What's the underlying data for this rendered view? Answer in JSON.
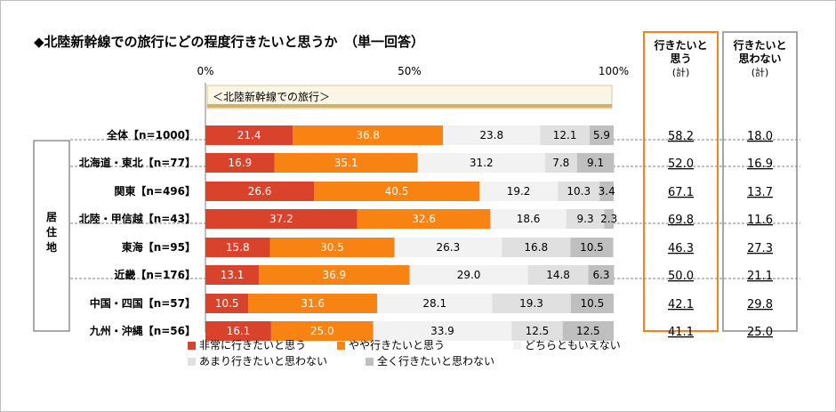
{
  "title": "◆北陸新幹線での旅行にどの程度行きたいと思うか　（単一回答）",
  "chart_data": {
    "type": "bar",
    "stacked": true,
    "orientation": "horizontal",
    "xlim": [
      0,
      100
    ],
    "x_ticks": [
      "0%",
      "50%",
      "100%"
    ],
    "banner": "＜北陸新幹線での旅行＞",
    "group_label": "居住地",
    "categories": [
      "全体【n=1000】",
      "北海道・東北【n=77】",
      "関東【n=496】",
      "北陸・甲信越【n=43】",
      "東海【n=95】",
      "近畿【n=176】",
      "中国・四国【n=57】",
      "九州・沖縄【n=56】"
    ],
    "series": [
      {
        "name": "非常に行きたいと思う",
        "color": "#d9432b",
        "label_color": "#ffffff",
        "values": [
          21.4,
          16.9,
          26.6,
          37.2,
          15.8,
          13.1,
          10.5,
          16.1
        ]
      },
      {
        "name": "やや行きたいと思う",
        "color": "#f98312",
        "label_color": "#ffffff",
        "values": [
          36.8,
          35.1,
          40.5,
          32.6,
          30.5,
          36.9,
          31.6,
          25.0
        ]
      },
      {
        "name": "どちらともいえない",
        "color": "#f2f2f2",
        "label_color": "#000000",
        "values": [
          23.8,
          31.2,
          19.2,
          18.6,
          26.3,
          29.0,
          28.1,
          33.9
        ]
      },
      {
        "name": "あまり行きたいと思わない",
        "color": "#e0e0e0",
        "label_color": "#000000",
        "values": [
          12.1,
          7.8,
          10.3,
          9.3,
          16.8,
          14.8,
          19.3,
          12.5
        ]
      },
      {
        "name": "全く行きたいと思わない",
        "color": "#bfbfbf",
        "label_color": "#000000",
        "values": [
          5.9,
          9.1,
          3.4,
          2.3,
          10.5,
          6.3,
          10.5,
          12.5
        ]
      }
    ],
    "summary_columns": [
      {
        "title": "行きたいと思う（計）",
        "title_lines": [
          "行きたいと",
          "思う",
          "(計)"
        ],
        "border_color": "#f98312",
        "values": [
          "58.2",
          "52.0",
          "67.1",
          "69.8",
          "46.3",
          "50.0",
          "42.1",
          "41.1"
        ]
      },
      {
        "title": "行きたいと思わない（計）",
        "title_lines": [
          "行きたいと",
          "思わない",
          "(計)"
        ],
        "border_color": "#a6a6a6",
        "values": [
          "18.0",
          "16.9",
          "13.7",
          "11.6",
          "27.3",
          "21.1",
          "29.8",
          "25.0"
        ]
      }
    ]
  }
}
